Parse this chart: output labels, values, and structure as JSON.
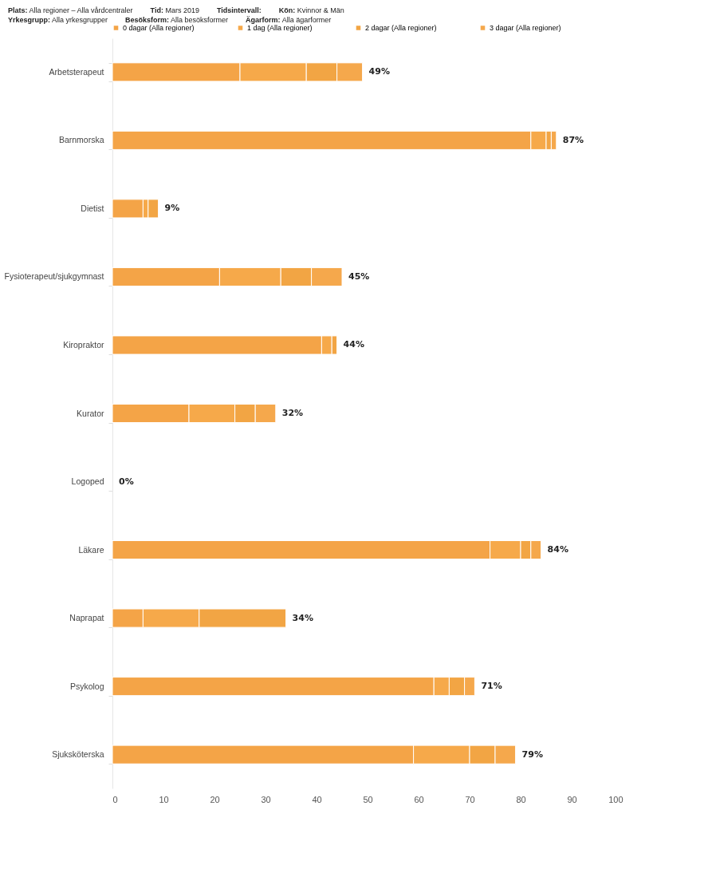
{
  "chart_data": {
    "type": "bar",
    "orientation": "horizontal",
    "stacked": true,
    "annotations": [
      "Plats: Alla regioner – Alla vårdcentraler",
      "Tid: Mars 2019",
      "Tidsintervall:",
      "Kön: Kvinnor & Män",
      "Yrkesgrupp: Alla yrkesgrupper",
      "Besöksform: Alla besöksformer",
      "Ägarform: Alla ägarformer"
    ],
    "categories": [
      "Arbetsterapeut",
      "Barnmorska",
      "Dietist",
      "Fysioterapeut/sjukgymnast",
      "Kiropraktor",
      "Kurator",
      "Logoped",
      "Läkare",
      "Naprapat",
      "Psykolog",
      "Sjuksköterska"
    ],
    "series": [
      {
        "name": "0 dagar (Alla regioner)",
        "color": "#f4a447",
        "values": [
          25,
          82,
          6,
          21,
          41,
          15,
          0,
          74,
          6,
          63,
          59
        ]
      },
      {
        "name": "1 dag (Alla regioner)",
        "color": "#f6a94a",
        "values": [
          13,
          3,
          1,
          12,
          2,
          9,
          0,
          6,
          11,
          3,
          11
        ]
      },
      {
        "name": "2 dagar (Alla regioner)",
        "color": "#f2a544",
        "values": [
          6,
          1,
          2,
          6,
          1,
          4,
          0,
          2,
          17,
          3,
          5
        ]
      },
      {
        "name": "3 dagar (Alla regioner)",
        "color": "#f5a84c",
        "values": [
          5,
          1,
          0,
          6,
          0,
          4,
          0,
          2,
          0,
          2,
          4
        ]
      }
    ],
    "totals": [
      "49%",
      "87%",
      "9%",
      "45%",
      "44%",
      "32%",
      "0%",
      "84%",
      "34%",
      "71%",
      "79%"
    ],
    "xlim": [
      0,
      100
    ],
    "xticks": [
      0,
      10,
      20,
      30,
      40,
      50,
      60,
      70,
      80,
      90,
      100
    ],
    "grid": false,
    "legend": "top left"
  }
}
